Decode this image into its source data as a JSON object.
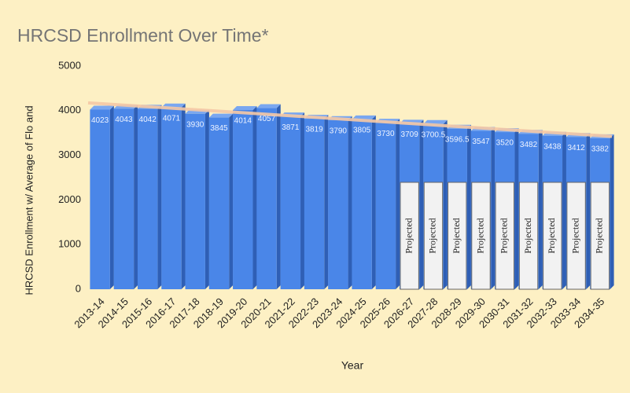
{
  "chart_data": {
    "type": "bar3d",
    "title": "HRCSD Enrollment Over Time*",
    "x_label": "Year",
    "y_label": "HRCSD Enrollment w/ Average of Flo and",
    "categories": [
      "2013-14",
      "2014-15",
      "2015-16",
      "2016-17",
      "2017-18",
      "2018-19",
      "2019-20",
      "2020-21",
      "2021-22",
      "2022-23",
      "2023-24",
      "2024-25",
      "2025-26",
      "2026-27",
      "2027-28",
      "2028-29",
      "2029-30",
      "2030-31",
      "2031-32",
      "2032-33",
      "2033-34",
      "2034-35"
    ],
    "values": [
      4023,
      4043,
      4042,
      4071,
      3930,
      3845,
      4014,
      4057,
      3871,
      3819,
      3790,
      3805,
      3730,
      3709,
      3700.5,
      3596.5,
      3547,
      3520,
      3482,
      3438,
      3412,
      3382
    ],
    "color": "#4a86e8",
    "ylim": [
      0,
      5000
    ],
    "yticks": [
      0,
      1000,
      2000,
      3000,
      4000,
      5000
    ],
    "grid": false,
    "trendline": true,
    "trendline_color": "#f6c9a6",
    "projected": {
      "label": "Projected",
      "categories": [
        "2026-27",
        "2027-28",
        "2028-29",
        "2029-30",
        "2030-31",
        "2031-32",
        "2032-33",
        "2033-34",
        "2034-35"
      ]
    }
  }
}
